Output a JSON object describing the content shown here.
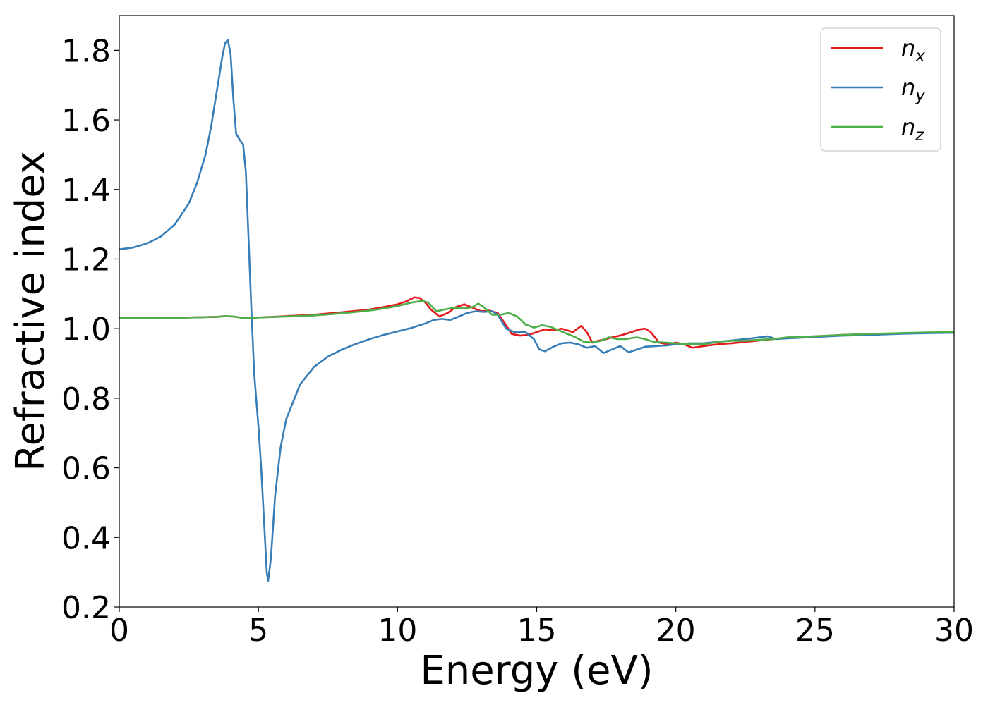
{
  "chart_data": {
    "type": "line",
    "xlabel": "Energy (eV)",
    "ylabel": "Refractive index",
    "xlim": [
      0,
      30
    ],
    "ylim": [
      0.2,
      1.9
    ],
    "xticks": [
      0,
      5,
      10,
      15,
      20,
      25,
      30
    ],
    "yticks": [
      0.2,
      0.4,
      0.6,
      0.8,
      1.0,
      1.2,
      1.4,
      1.6,
      1.8
    ],
    "ytick_labels": [
      "0.2",
      "0.4",
      "0.6",
      "0.8",
      "1.0",
      "1.2",
      "1.4",
      "1.6",
      "1.8"
    ],
    "grid": false,
    "legend_position": "top-right",
    "series": [
      {
        "name": "n_x",
        "label_base": "n",
        "label_sub": "x",
        "color": "#e41a1c",
        "points": [
          [
            0,
            1.03
          ],
          [
            2,
            1.031
          ],
          [
            3.5,
            1.034
          ],
          [
            3.8,
            1.036
          ],
          [
            4.1,
            1.035
          ],
          [
            4.5,
            1.03
          ],
          [
            5,
            1.032
          ],
          [
            6,
            1.036
          ],
          [
            7,
            1.04
          ],
          [
            8,
            1.047
          ],
          [
            9,
            1.055
          ],
          [
            9.5,
            1.062
          ],
          [
            10,
            1.07
          ],
          [
            10.3,
            1.078
          ],
          [
            10.6,
            1.09
          ],
          [
            10.8,
            1.088
          ],
          [
            11,
            1.075
          ],
          [
            11.2,
            1.055
          ],
          [
            11.5,
            1.035
          ],
          [
            11.8,
            1.045
          ],
          [
            12.1,
            1.062
          ],
          [
            12.4,
            1.07
          ],
          [
            12.7,
            1.06
          ],
          [
            13,
            1.05
          ],
          [
            13.3,
            1.052
          ],
          [
            13.6,
            1.045
          ],
          [
            13.9,
            1.01
          ],
          [
            14.1,
            0.985
          ],
          [
            14.4,
            0.98
          ],
          [
            14.7,
            0.982
          ],
          [
            15,
            0.99
          ],
          [
            15.3,
            0.998
          ],
          [
            15.6,
            0.995
          ],
          [
            15.9,
            1.0
          ],
          [
            16.1,
            0.995
          ],
          [
            16.3,
            0.99
          ],
          [
            16.6,
            1.008
          ],
          [
            16.8,
            0.99
          ],
          [
            17.0,
            0.96
          ],
          [
            17.2,
            0.965
          ],
          [
            17.5,
            0.97
          ],
          [
            17.7,
            0.975
          ],
          [
            18,
            0.98
          ],
          [
            18.4,
            0.99
          ],
          [
            18.7,
            0.998
          ],
          [
            18.9,
            1.0
          ],
          [
            19.1,
            0.99
          ],
          [
            19.4,
            0.96
          ],
          [
            19.7,
            0.955
          ],
          [
            20,
            0.96
          ],
          [
            20.3,
            0.955
          ],
          [
            20.6,
            0.945
          ],
          [
            21,
            0.95
          ],
          [
            21.5,
            0.955
          ],
          [
            22,
            0.958
          ],
          [
            22.5,
            0.962
          ],
          [
            23,
            0.966
          ],
          [
            23.5,
            0.97
          ],
          [
            24,
            0.974
          ],
          [
            25,
            0.978
          ],
          [
            26,
            0.982
          ],
          [
            27,
            0.984
          ],
          [
            28,
            0.986
          ],
          [
            29,
            0.988
          ],
          [
            30,
            0.99
          ]
        ]
      },
      {
        "name": "n_y",
        "label_base": "n",
        "label_sub": "y",
        "color": "#377eb8",
        "points": [
          [
            0,
            1.228
          ],
          [
            0.5,
            1.233
          ],
          [
            1,
            1.245
          ],
          [
            1.5,
            1.265
          ],
          [
            2,
            1.3
          ],
          [
            2.5,
            1.36
          ],
          [
            2.8,
            1.42
          ],
          [
            3.1,
            1.5
          ],
          [
            3.3,
            1.58
          ],
          [
            3.5,
            1.68
          ],
          [
            3.7,
            1.78
          ],
          [
            3.8,
            1.82
          ],
          [
            3.9,
            1.83
          ],
          [
            4.0,
            1.79
          ],
          [
            4.1,
            1.66
          ],
          [
            4.2,
            1.56
          ],
          [
            4.35,
            1.54
          ],
          [
            4.45,
            1.53
          ],
          [
            4.55,
            1.45
          ],
          [
            4.65,
            1.25
          ],
          [
            4.75,
            1.05
          ],
          [
            4.85,
            0.87
          ],
          [
            5.0,
            0.72
          ],
          [
            5.1,
            0.6
          ],
          [
            5.2,
            0.45
          ],
          [
            5.3,
            0.3
          ],
          [
            5.35,
            0.275
          ],
          [
            5.45,
            0.34
          ],
          [
            5.6,
            0.52
          ],
          [
            5.8,
            0.66
          ],
          [
            6.0,
            0.74
          ],
          [
            6.5,
            0.84
          ],
          [
            7,
            0.89
          ],
          [
            7.5,
            0.92
          ],
          [
            8,
            0.94
          ],
          [
            8.5,
            0.956
          ],
          [
            9,
            0.97
          ],
          [
            9.5,
            0.982
          ],
          [
            10,
            0.992
          ],
          [
            10.5,
            1.002
          ],
          [
            11,
            1.015
          ],
          [
            11.3,
            1.025
          ],
          [
            11.6,
            1.028
          ],
          [
            11.9,
            1.025
          ],
          [
            12.2,
            1.035
          ],
          [
            12.5,
            1.045
          ],
          [
            12.8,
            1.05
          ],
          [
            13.1,
            1.048
          ],
          [
            13.4,
            1.05
          ],
          [
            13.6,
            1.04
          ],
          [
            13.9,
            1.0
          ],
          [
            14.2,
            0.99
          ],
          [
            14.6,
            0.99
          ],
          [
            14.9,
            0.97
          ],
          [
            15.1,
            0.94
          ],
          [
            15.3,
            0.935
          ],
          [
            15.6,
            0.948
          ],
          [
            15.9,
            0.958
          ],
          [
            16.2,
            0.96
          ],
          [
            16.5,
            0.955
          ],
          [
            16.8,
            0.945
          ],
          [
            17.1,
            0.95
          ],
          [
            17.4,
            0.93
          ],
          [
            17.7,
            0.94
          ],
          [
            18,
            0.95
          ],
          [
            18.3,
            0.932
          ],
          [
            18.6,
            0.94
          ],
          [
            18.9,
            0.948
          ],
          [
            19.3,
            0.95
          ],
          [
            19.7,
            0.952
          ],
          [
            20,
            0.955
          ],
          [
            20.5,
            0.958
          ],
          [
            21,
            0.958
          ],
          [
            21.5,
            0.962
          ],
          [
            22,
            0.966
          ],
          [
            22.5,
            0.97
          ],
          [
            23,
            0.975
          ],
          [
            23.3,
            0.978
          ],
          [
            23.6,
            0.97
          ],
          [
            24,
            0.972
          ],
          [
            25,
            0.976
          ],
          [
            26,
            0.98
          ],
          [
            27,
            0.982
          ],
          [
            28,
            0.985
          ],
          [
            29,
            0.987
          ],
          [
            30,
            0.988
          ]
        ]
      },
      {
        "name": "n_z",
        "label_base": "n",
        "label_sub": "z",
        "color": "#4daf4a",
        "points": [
          [
            0,
            1.03
          ],
          [
            2,
            1.031
          ],
          [
            3.5,
            1.034
          ],
          [
            3.8,
            1.036
          ],
          [
            4.1,
            1.035
          ],
          [
            4.5,
            1.03
          ],
          [
            5,
            1.032
          ],
          [
            6,
            1.035
          ],
          [
            7,
            1.038
          ],
          [
            8,
            1.044
          ],
          [
            9,
            1.052
          ],
          [
            9.5,
            1.058
          ],
          [
            10,
            1.065
          ],
          [
            10.5,
            1.075
          ],
          [
            10.9,
            1.08
          ],
          [
            11.1,
            1.075
          ],
          [
            11.4,
            1.05
          ],
          [
            11.7,
            1.055
          ],
          [
            12,
            1.06
          ],
          [
            12.4,
            1.058
          ],
          [
            12.7,
            1.062
          ],
          [
            12.9,
            1.072
          ],
          [
            13.1,
            1.062
          ],
          [
            13.4,
            1.04
          ],
          [
            13.7,
            1.04
          ],
          [
            14,
            1.045
          ],
          [
            14.3,
            1.035
          ],
          [
            14.6,
            1.012
          ],
          [
            14.9,
            1.003
          ],
          [
            15.2,
            1.01
          ],
          [
            15.5,
            1.005
          ],
          [
            15.8,
            0.995
          ],
          [
            16.1,
            0.985
          ],
          [
            16.4,
            0.975
          ],
          [
            16.7,
            0.962
          ],
          [
            17,
            0.96
          ],
          [
            17.3,
            0.965
          ],
          [
            17.6,
            0.975
          ],
          [
            17.9,
            0.97
          ],
          [
            18.2,
            0.97
          ],
          [
            18.6,
            0.975
          ],
          [
            18.9,
            0.97
          ],
          [
            19.2,
            0.962
          ],
          [
            19.6,
            0.96
          ],
          [
            20,
            0.958
          ],
          [
            20.5,
            0.955
          ],
          [
            21,
            0.955
          ],
          [
            21.5,
            0.962
          ],
          [
            22,
            0.965
          ],
          [
            22.5,
            0.965
          ],
          [
            23,
            0.968
          ],
          [
            23.5,
            0.97
          ],
          [
            24,
            0.975
          ],
          [
            25,
            0.978
          ],
          [
            26,
            0.982
          ],
          [
            27,
            0.985
          ],
          [
            28,
            0.987
          ],
          [
            29,
            0.989
          ],
          [
            30,
            0.99
          ]
        ]
      }
    ]
  }
}
